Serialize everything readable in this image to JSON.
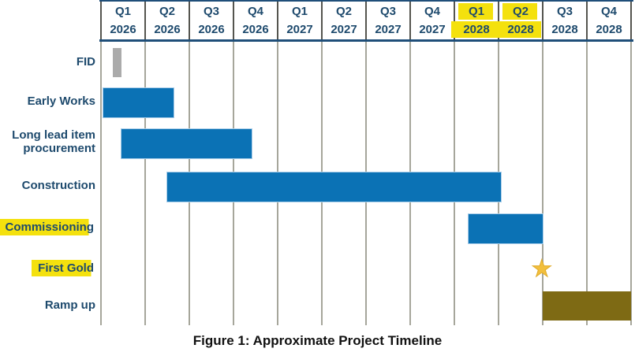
{
  "figure_caption": "Figure 1: Approximate Project Timeline",
  "colors": {
    "header_text": "#1e4a6d",
    "header_border": "#1f4e79",
    "gridline": "#a6a69b",
    "bar_blue": "#0b72b5",
    "bar_gray": "#ababab",
    "bar_olive": "#7e6a14",
    "highlight_yellow": "#f4e10e",
    "star_gold": "#f2bf3d"
  },
  "icons": {
    "milestone": {
      "name": "star-icon",
      "glyph": "★"
    }
  },
  "chart_data": {
    "type": "gantt",
    "axis": {
      "unit": "quarter",
      "quarters_total": 12,
      "first_quarter": "Q1 2026",
      "last_quarter": "Q4 2028"
    },
    "quarters": [
      {
        "quarter": "Q1",
        "year": "2026",
        "highlighted": false
      },
      {
        "quarter": "Q2",
        "year": "2026",
        "highlighted": false
      },
      {
        "quarter": "Q3",
        "year": "2026",
        "highlighted": false
      },
      {
        "quarter": "Q4",
        "year": "2026",
        "highlighted": false
      },
      {
        "quarter": "Q1",
        "year": "2027",
        "highlighted": false
      },
      {
        "quarter": "Q2",
        "year": "2027",
        "highlighted": false
      },
      {
        "quarter": "Q3",
        "year": "2027",
        "highlighted": false
      },
      {
        "quarter": "Q4",
        "year": "2027",
        "highlighted": false
      },
      {
        "quarter": "Q1",
        "year": "2028",
        "highlighted": true
      },
      {
        "quarter": "Q2",
        "year": "2028",
        "highlighted": true
      },
      {
        "quarter": "Q3",
        "year": "2028",
        "highlighted": false
      },
      {
        "quarter": "Q4",
        "year": "2028",
        "highlighted": false
      }
    ],
    "tasks": [
      {
        "label": "FID",
        "label_lines": [
          "FID"
        ],
        "label_highlighted": false,
        "type": "bar",
        "color": "gray",
        "start": 0.26,
        "end": 0.47,
        "start_label": "Q1 2026",
        "end_label": "Q1 2026"
      },
      {
        "label": "Early Works",
        "label_lines": [
          "Early Works"
        ],
        "label_highlighted": false,
        "type": "bar",
        "color": "blue",
        "start": 0.03,
        "end": 1.63,
        "start_label": "Q1 2026",
        "end_label": "Q2 2026"
      },
      {
        "label": "Long lead item procurement",
        "label_lines": [
          "Long lead item",
          "procurement"
        ],
        "label_highlighted": false,
        "type": "bar",
        "color": "blue",
        "start": 0.44,
        "end": 3.39,
        "start_label": "Q1 2026",
        "end_label": "Q4 2026"
      },
      {
        "label": "Construction",
        "label_lines": [
          "Construction"
        ],
        "label_highlighted": false,
        "type": "bar",
        "color": "blue",
        "start": 1.49,
        "end": 9.03,
        "start_label": "Q2 2026",
        "end_label": "Q1 2028"
      },
      {
        "label": "Commissioning",
        "label_lines": [
          "Commissioning"
        ],
        "label_highlighted": true,
        "type": "bar",
        "color": "blue",
        "start": 8.3,
        "end": 9.99,
        "start_label": "Q1 2028",
        "end_label": "Q2 2028"
      },
      {
        "label": "First Gold",
        "label_lines": [
          "First Gold"
        ],
        "label_highlighted": true,
        "type": "milestone",
        "at": 9.98,
        "at_label": "Q2/Q3 2028 boundary"
      },
      {
        "label": "Ramp up",
        "label_lines": [
          "Ramp up"
        ],
        "label_highlighted": false,
        "type": "bar",
        "color": "olive",
        "start": 10.0,
        "end": 12.0,
        "start_label": "Q3 2028",
        "end_label": "Q4 2028"
      }
    ]
  }
}
